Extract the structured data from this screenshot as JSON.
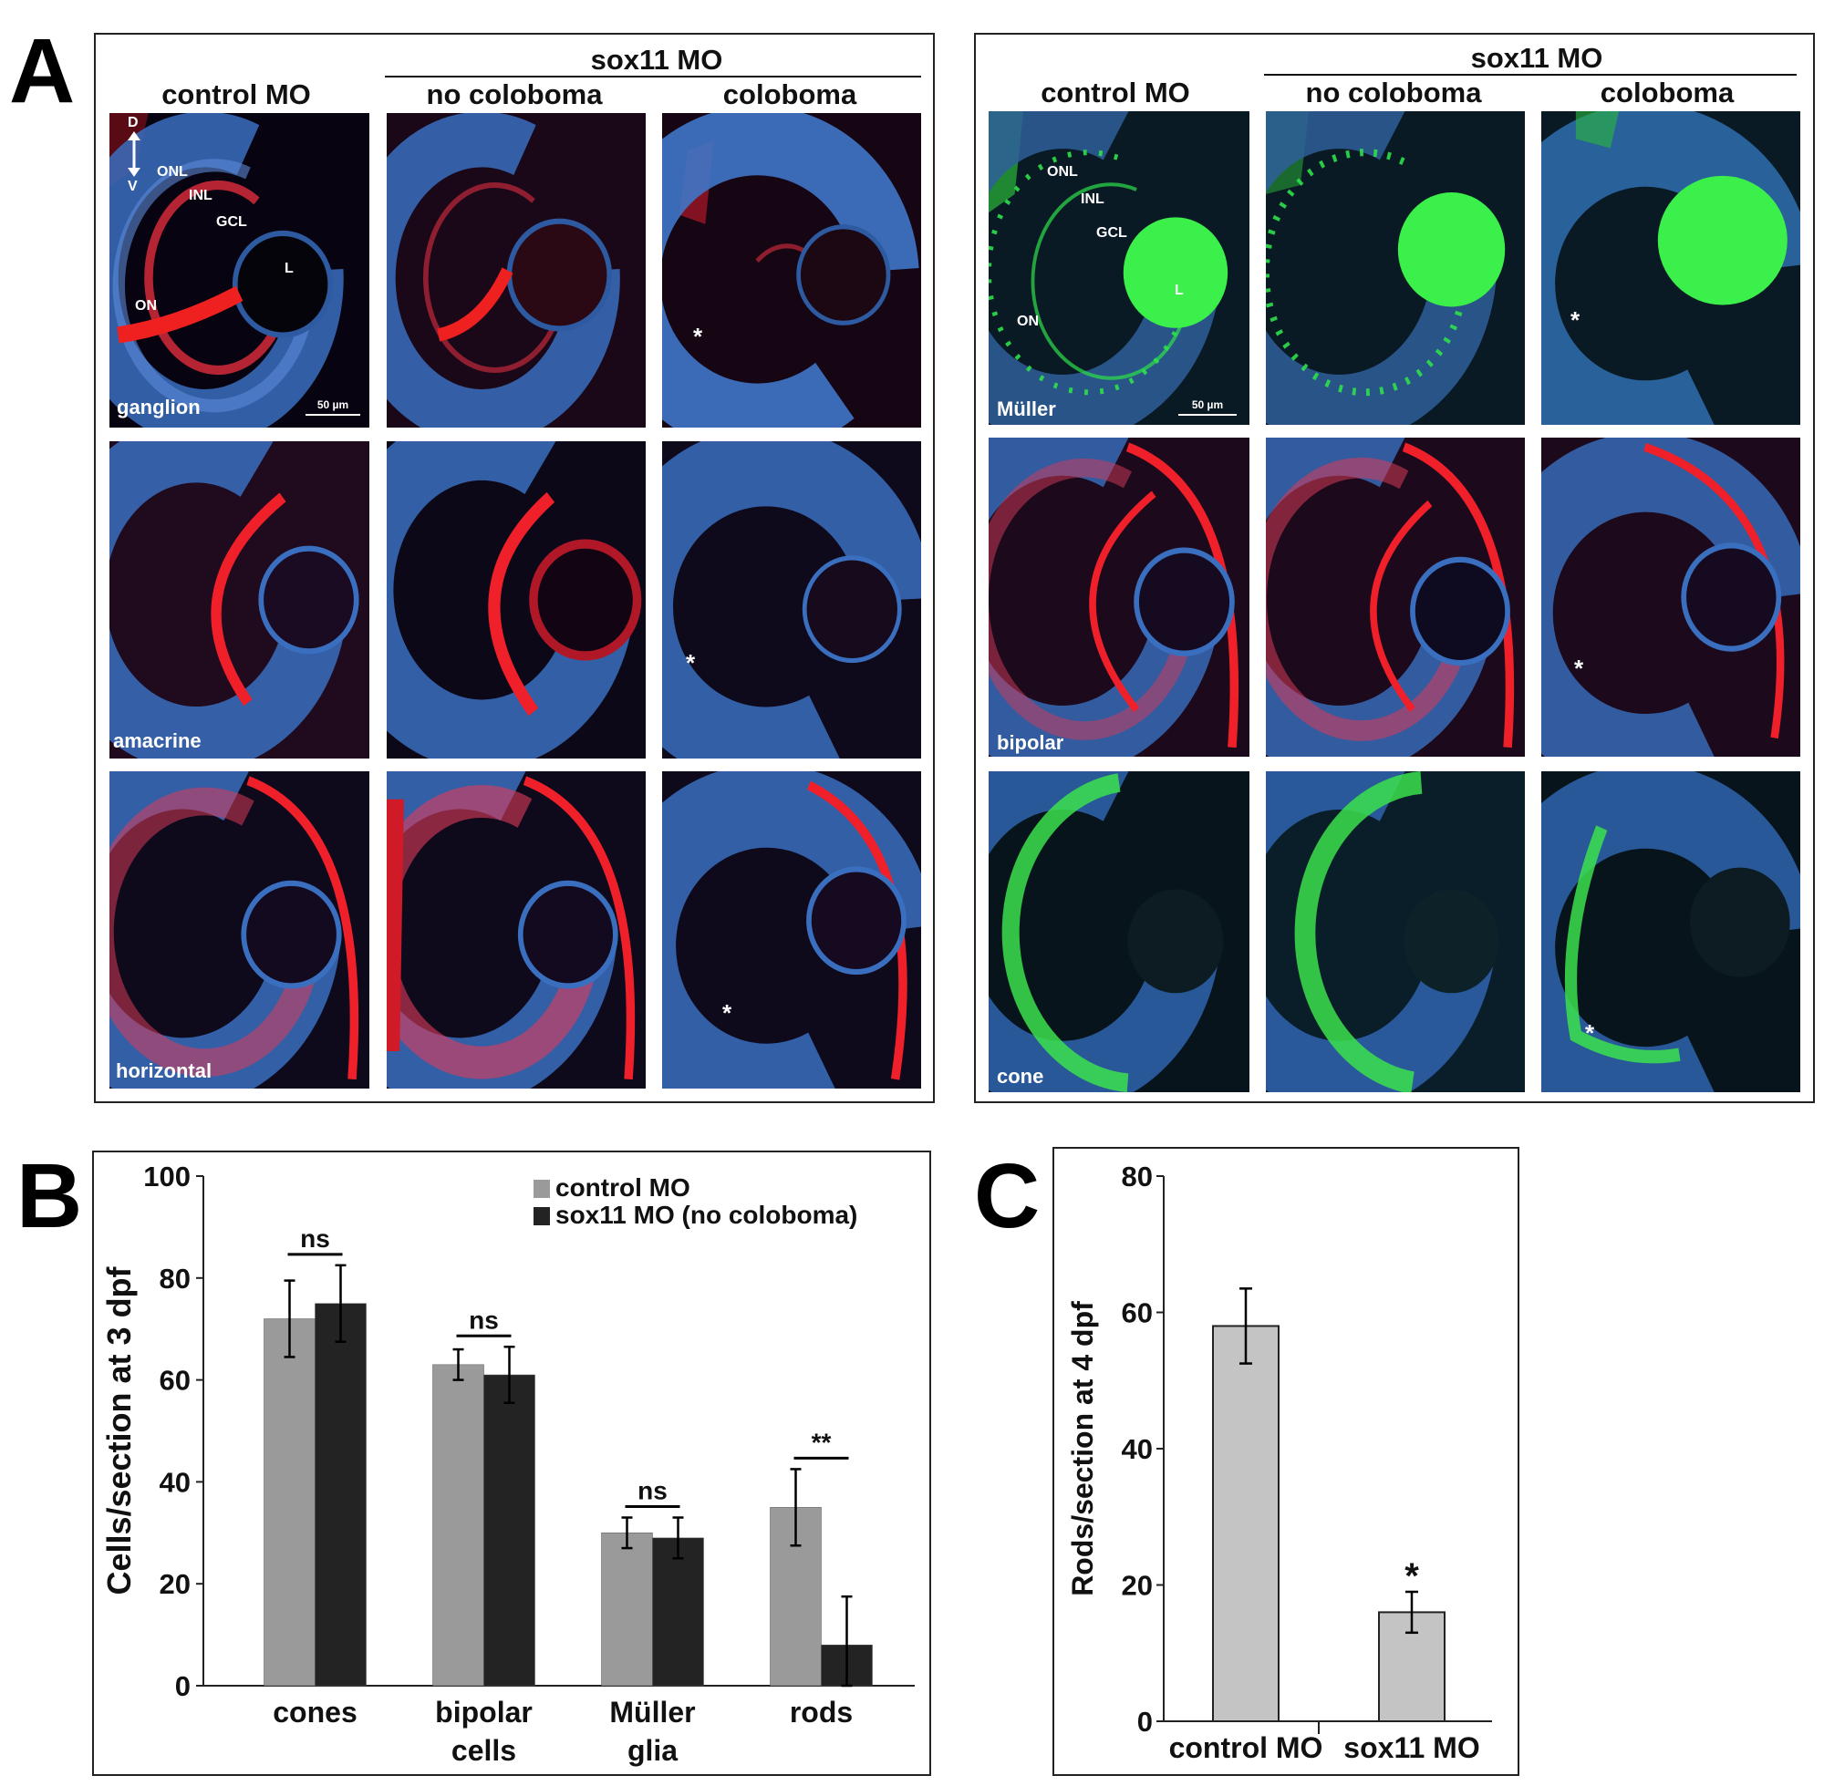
{
  "panel_letters": {
    "a": "A",
    "b": "B",
    "c": "C"
  },
  "panel_a": {
    "left_group": {
      "group_header": "sox11 MO",
      "col_headers": [
        "control MO",
        "no coloboma",
        "coloboma"
      ],
      "row_labels": [
        "ganglion",
        "amacrine",
        "horizontal"
      ],
      "annotations": {
        "d": "D",
        "v": "V",
        "onl": "ONL",
        "inl": "INL",
        "gcl": "GCL",
        "lens": "L",
        "on": "ON"
      },
      "scale_bar": "50 µm",
      "asterisk": "*"
    },
    "right_group": {
      "group_header": "sox11 MO",
      "col_headers": [
        "control MO",
        "no coloboma",
        "coloboma"
      ],
      "row_labels": [
        "Müller",
        "bipolar",
        "cone"
      ],
      "annotations": {
        "onl": "ONL",
        "inl": "INL",
        "gcl": "GCL",
        "lens": "L",
        "on": "ON"
      },
      "scale_bar": "50 µm",
      "asterisk": "*"
    },
    "colors": {
      "red_stain": "#e8231e",
      "blue_stain": "#3b78c8",
      "green_stain": "#2de04a"
    }
  },
  "chart_data": [
    {
      "type": "bar",
      "ylabel": "Cells/section at 3 dpf",
      "categories": [
        "cones",
        "bipolar cells",
        "Müller glia",
        "rods"
      ],
      "category_lines": [
        [
          "cones"
        ],
        [
          "bipolar",
          "cells"
        ],
        [
          "Müller",
          "glia"
        ],
        [
          "rods"
        ]
      ],
      "ylim": [
        0,
        100
      ],
      "yticks": [
        0,
        20,
        40,
        60,
        80,
        100
      ],
      "series": [
        {
          "name": "control MO",
          "color": "#9a9a9a",
          "values": [
            72,
            63,
            30,
            35
          ],
          "errors": [
            7.5,
            3,
            3,
            7.5
          ]
        },
        {
          "name": "sox11 MO (no coloboma)",
          "color": "#232323",
          "values": [
            75,
            61,
            29,
            8
          ],
          "errors": [
            7.5,
            5.5,
            4,
            9.5
          ]
        }
      ],
      "significance": [
        "ns",
        "ns",
        "ns",
        "**"
      ],
      "legend_position": "top-right"
    },
    {
      "type": "bar",
      "ylabel": "Rods/section at 4 dpf",
      "categories": [
        "control MO",
        "sox11 MO"
      ],
      "ylim": [
        0,
        80
      ],
      "yticks": [
        0,
        20,
        40,
        60,
        80
      ],
      "series": [
        {
          "color": "#c4c4c4",
          "values": [
            58,
            16
          ],
          "errors": [
            5.5,
            3
          ]
        }
      ],
      "significance": [
        "",
        "*"
      ]
    }
  ]
}
